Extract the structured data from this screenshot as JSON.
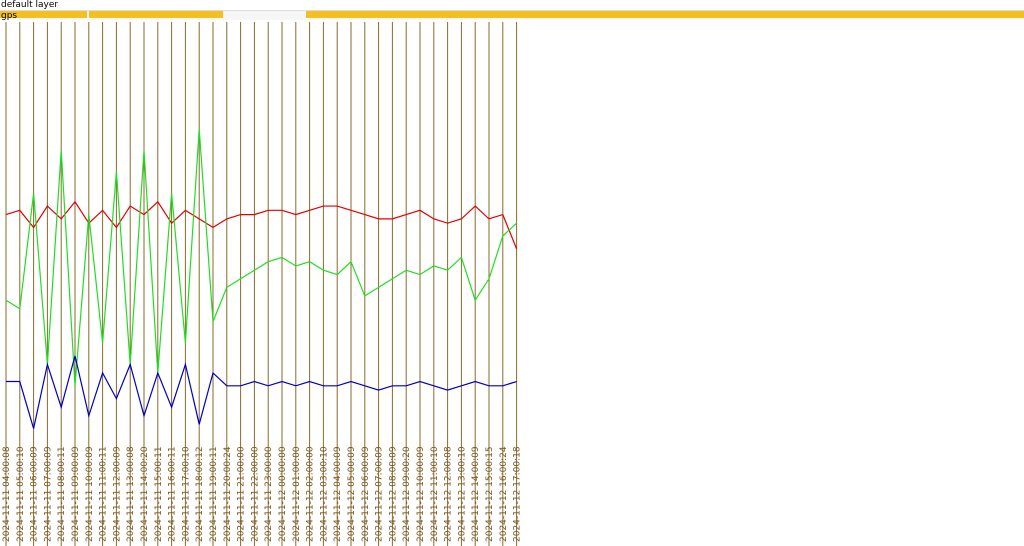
{
  "header": {
    "layer": "default layer",
    "track": "gps"
  },
  "chart_data": {
    "type": "line",
    "categories": [
      "2024-11-11 04:00:08",
      "2024-11-11 05:00:10",
      "2024-11-11 06:00:09",
      "2024-11-11 07:00:09",
      "2024-11-11 08:00:11",
      "2024-11-11 09:00:09",
      "2024-11-11 10:00:09",
      "2024-11-11 11:00:11",
      "2024-11-11 12:00:09",
      "2024-11-11 13:00:08",
      "2024-11-11 14:00:20",
      "2024-11-11 15:00:11",
      "2024-11-11 16:00:11",
      "2024-11-11 17:00:10",
      "2024-11-11 18:00:12",
      "2024-11-11 19:00:11",
      "2024-11-11 20:00:24",
      "2024-11-11 21:00:00",
      "2024-11-11 22:00:00",
      "2024-11-11 23:00:00",
      "2024-11-12 00:00:00",
      "2024-11-12 01:00:00",
      "2024-11-12 02:00:00",
      "2024-11-12 03:00:10",
      "2024-11-12 04:00:09",
      "2024-11-12 05:00:09",
      "2024-11-12 06:00:09",
      "2024-11-12 07:00:09",
      "2024-11-12 08:00:09",
      "2024-11-12 09:00:20",
      "2024-11-12 10:00:09",
      "2024-11-12 11:00:10",
      "2024-11-12 12:00:08",
      "2024-11-12 13:00:10",
      "2024-11-12 14:00:09",
      "2024-11-12 15:00:15",
      "2024-11-12 16:00:24",
      "2024-11-12 17:00:18"
    ],
    "series": [
      {
        "color": "#e00000",
        "values": [
          55,
          56,
          52,
          57,
          54,
          58,
          53,
          56,
          52,
          57,
          55,
          58,
          53,
          56,
          54,
          52,
          54,
          55,
          55,
          56,
          56,
          55,
          56,
          57,
          57,
          56,
          55,
          54,
          54,
          55,
          56,
          54,
          53,
          54,
          57,
          54,
          55,
          47
        ]
      },
      {
        "color": "#22dd22",
        "values": [
          35,
          33,
          60,
          20,
          70,
          15,
          55,
          25,
          65,
          20,
          70,
          18,
          60,
          25,
          75,
          30,
          38,
          40,
          42,
          44,
          45,
          43,
          44,
          42,
          41,
          44,
          36,
          38,
          40,
          42,
          41,
          43,
          42,
          45,
          35,
          40,
          50,
          53
        ]
      },
      {
        "color": "#0000c0",
        "values": [
          16,
          16,
          5,
          20,
          10,
          22,
          8,
          18,
          12,
          20,
          8,
          18,
          10,
          20,
          6,
          18,
          15,
          15,
          16,
          15,
          16,
          15,
          16,
          15,
          15,
          16,
          15,
          14,
          15,
          15,
          16,
          15,
          14,
          15,
          16,
          15,
          15,
          16
        ]
      }
    ],
    "ylim": [
      0,
      100
    ]
  }
}
